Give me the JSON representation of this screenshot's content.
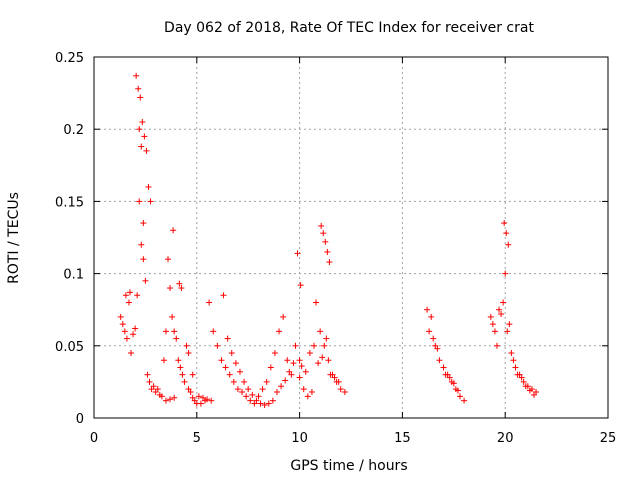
{
  "chart_data": {
    "type": "scatter",
    "title": "Day 062 of 2018, Rate Of TEC Index for receiver crat",
    "xlabel": "GPS time / hours",
    "ylabel": "ROTI / TECUs",
    "xlim": [
      0,
      25
    ],
    "ylim": [
      0,
      0.25
    ],
    "xticks": [
      0,
      5,
      10,
      15,
      20,
      25
    ],
    "xtick_labels": [
      "0",
      "5",
      "10",
      "15",
      "20",
      "25"
    ],
    "yticks": [
      0,
      0.05,
      0.1,
      0.15,
      0.2,
      0.25
    ],
    "ytick_labels": [
      "0",
      "0.05",
      "0.1",
      "0.15",
      "0.2",
      "0.25"
    ],
    "grid": true,
    "marker": "+",
    "color": "#ff0000",
    "series": [
      {
        "name": "ROTI",
        "x": [
          1.3,
          1.4,
          1.5,
          1.6,
          1.7,
          1.8,
          1.9,
          2.0,
          2.1,
          2.2,
          2.3,
          2.4,
          2.5,
          2.6,
          2.7,
          2.8,
          2.9,
          3.0,
          3.1,
          3.2,
          3.3,
          3.4,
          3.5,
          3.6,
          3.7,
          3.8,
          3.9,
          4.0,
          4.1,
          4.2,
          4.3,
          4.4,
          4.5,
          4.6,
          4.7,
          4.8,
          4.9,
          5.0,
          5.2,
          5.4,
          5.6,
          5.8,
          6.0,
          6.2,
          6.4,
          6.6,
          6.8,
          7.0,
          7.2,
          7.4,
          7.6,
          7.8,
          8.0,
          8.2,
          8.4,
          8.6,
          8.8,
          9.0,
          9.2,
          9.4,
          9.6,
          9.8,
          10.0,
          10.2,
          10.4,
          10.6,
          10.8,
          11.0,
          11.2,
          11.4,
          11.6,
          11.8,
          12.0,
          12.2,
          16.2,
          16.4,
          16.6,
          16.8,
          17.0,
          17.2,
          17.4,
          17.6,
          17.8,
          18.0,
          19.3,
          19.5,
          19.7,
          19.9,
          20.1,
          20.3,
          20.5,
          20.7,
          20.9,
          21.1,
          21.3,
          21.5,
          1.55,
          1.75,
          2.05,
          2.15,
          2.25,
          2.35,
          2.45,
          2.55,
          2.65,
          2.75,
          3.85,
          4.15,
          4.25,
          6.3,
          9.9,
          10.05,
          11.05,
          11.15,
          11.25,
          11.35,
          11.45,
          19.95,
          20.05,
          20.15,
          2.2,
          2.3,
          2.4,
          10.0,
          10.1,
          10.3,
          10.5,
          10.7,
          10.9,
          11.1,
          11.3,
          11.5,
          11.7,
          11.9,
          16.3,
          16.5,
          16.7,
          17.1,
          17.3,
          17.5,
          17.7,
          19.4,
          19.6,
          19.8,
          20.0,
          20.2,
          20.4,
          20.6,
          20.8,
          21.0,
          21.2,
          21.4,
          3.5,
          3.7,
          3.9,
          4.6,
          4.8,
          5.1,
          5.3,
          5.5,
          5.7,
          6.5,
          6.7,
          6.9,
          7.1,
          7.3,
          7.5,
          7.7,
          7.9,
          8.1,
          8.3,
          8.5,
          8.7,
          8.9,
          9.1,
          9.3,
          9.5,
          9.7
        ],
        "y": [
          0.07,
          0.065,
          0.06,
          0.055,
          0.08,
          0.045,
          0.058,
          0.062,
          0.085,
          0.15,
          0.12,
          0.11,
          0.095,
          0.03,
          0.025,
          0.02,
          0.022,
          0.018,
          0.02,
          0.016,
          0.015,
          0.04,
          0.06,
          0.11,
          0.09,
          0.07,
          0.06,
          0.055,
          0.04,
          0.035,
          0.03,
          0.025,
          0.05,
          0.02,
          0.018,
          0.014,
          0.012,
          0.01,
          0.01,
          0.012,
          0.08,
          0.06,
          0.05,
          0.04,
          0.035,
          0.03,
          0.025,
          0.02,
          0.018,
          0.015,
          0.012,
          0.01,
          0.015,
          0.02,
          0.025,
          0.035,
          0.045,
          0.06,
          0.07,
          0.04,
          0.03,
          0.05,
          0.028,
          0.02,
          0.015,
          0.018,
          0.08,
          0.06,
          0.05,
          0.04,
          0.03,
          0.025,
          0.02,
          0.018,
          0.075,
          0.07,
          0.05,
          0.04,
          0.035,
          0.03,
          0.025,
          0.02,
          0.015,
          0.012,
          0.07,
          0.06,
          0.075,
          0.08,
          0.06,
          0.045,
          0.035,
          0.03,
          0.025,
          0.022,
          0.02,
          0.018,
          0.085,
          0.087,
          0.237,
          0.228,
          0.222,
          0.205,
          0.195,
          0.185,
          0.16,
          0.15,
          0.13,
          0.093,
          0.09,
          0.085,
          0.114,
          0.092,
          0.133,
          0.128,
          0.122,
          0.115,
          0.108,
          0.135,
          0.128,
          0.12,
          0.2,
          0.188,
          0.135,
          0.04,
          0.036,
          0.032,
          0.045,
          0.05,
          0.038,
          0.042,
          0.055,
          0.03,
          0.028,
          0.025,
          0.06,
          0.055,
          0.048,
          0.03,
          0.028,
          0.024,
          0.019,
          0.065,
          0.05,
          0.072,
          0.1,
          0.065,
          0.04,
          0.03,
          0.028,
          0.022,
          0.019,
          0.016,
          0.012,
          0.013,
          0.014,
          0.045,
          0.03,
          0.015,
          0.014,
          0.013,
          0.012,
          0.055,
          0.045,
          0.038,
          0.032,
          0.025,
          0.02,
          0.016,
          0.012,
          0.01,
          0.009,
          0.01,
          0.012,
          0.018,
          0.022,
          0.026,
          0.032,
          0.038
        ]
      }
    ]
  }
}
